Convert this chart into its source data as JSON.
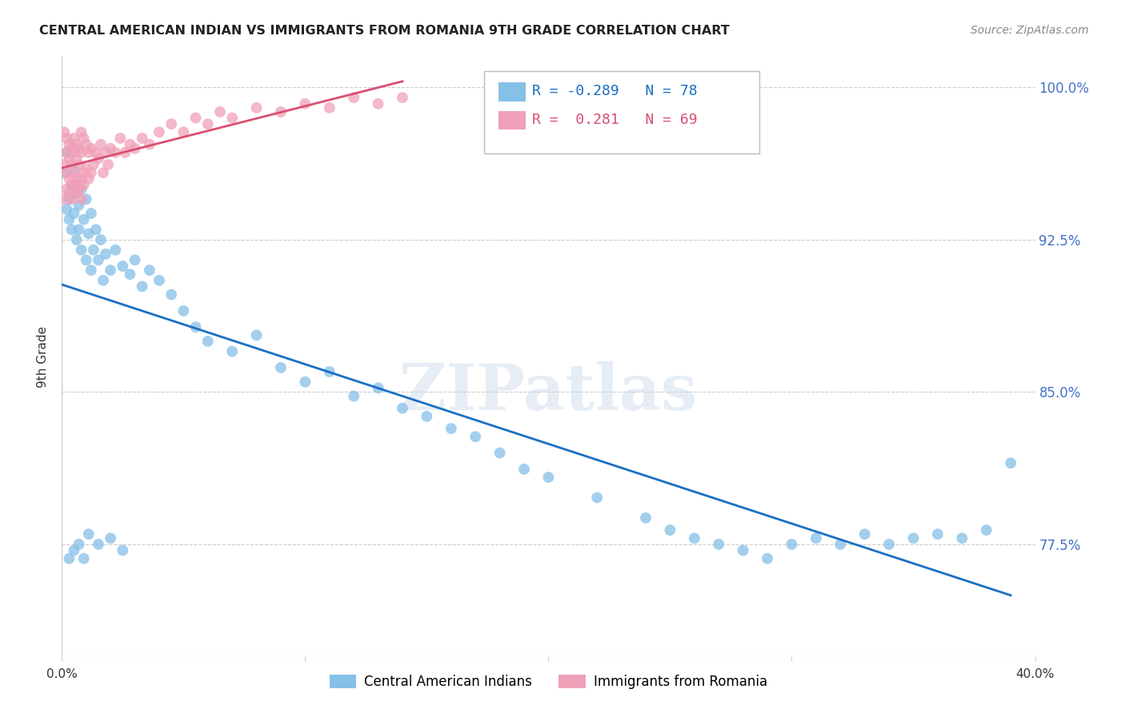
{
  "title": "CENTRAL AMERICAN INDIAN VS IMMIGRANTS FROM ROMANIA 9TH GRADE CORRELATION CHART",
  "source": "Source: ZipAtlas.com",
  "ylabel": "9th Grade",
  "xlim": [
    0.0,
    0.4
  ],
  "ylim": [
    0.72,
    1.015
  ],
  "blue_R": -0.289,
  "blue_N": 78,
  "pink_R": 0.281,
  "pink_N": 69,
  "legend_label_blue": "Central American Indians",
  "legend_label_pink": "Immigrants from Romania",
  "blue_color": "#85c0e8",
  "pink_color": "#f0a0b8",
  "blue_line_color": "#1a6fc4",
  "pink_line_color": "#d94f70",
  "watermark": "ZIPatlas",
  "ytick_positions": [
    0.775,
    0.85,
    0.925,
    1.0
  ],
  "ytick_labels": [
    "77.5%",
    "85.0%",
    "92.5%",
    "100.0%"
  ],
  "blue_scatter_x": [
    0.001,
    0.002,
    0.002,
    0.003,
    0.003,
    0.004,
    0.004,
    0.005,
    0.005,
    0.006,
    0.006,
    0.007,
    0.007,
    0.008,
    0.008,
    0.009,
    0.01,
    0.01,
    0.011,
    0.012,
    0.012,
    0.013,
    0.014,
    0.015,
    0.016,
    0.017,
    0.018,
    0.02,
    0.022,
    0.025,
    0.028,
    0.03,
    0.033,
    0.036,
    0.04,
    0.045,
    0.05,
    0.055,
    0.06,
    0.07,
    0.08,
    0.09,
    0.1,
    0.11,
    0.12,
    0.13,
    0.14,
    0.15,
    0.16,
    0.17,
    0.18,
    0.19,
    0.2,
    0.22,
    0.24,
    0.25,
    0.26,
    0.27,
    0.28,
    0.29,
    0.3,
    0.31,
    0.32,
    0.33,
    0.34,
    0.35,
    0.36,
    0.37,
    0.38,
    0.39,
    0.003,
    0.005,
    0.007,
    0.009,
    0.011,
    0.015,
    0.02,
    0.025
  ],
  "blue_scatter_y": [
    0.958,
    0.968,
    0.94,
    0.935,
    0.945,
    0.952,
    0.93,
    0.96,
    0.938,
    0.948,
    0.925,
    0.942,
    0.93,
    0.95,
    0.92,
    0.935,
    0.945,
    0.915,
    0.928,
    0.938,
    0.91,
    0.92,
    0.93,
    0.915,
    0.925,
    0.905,
    0.918,
    0.91,
    0.92,
    0.912,
    0.908,
    0.915,
    0.902,
    0.91,
    0.905,
    0.898,
    0.89,
    0.882,
    0.875,
    0.87,
    0.878,
    0.862,
    0.855,
    0.86,
    0.848,
    0.852,
    0.842,
    0.838,
    0.832,
    0.828,
    0.82,
    0.812,
    0.808,
    0.798,
    0.788,
    0.782,
    0.778,
    0.775,
    0.772,
    0.768,
    0.775,
    0.778,
    0.775,
    0.78,
    0.775,
    0.778,
    0.78,
    0.778,
    0.782,
    0.815,
    0.768,
    0.772,
    0.775,
    0.768,
    0.78,
    0.775,
    0.778,
    0.772
  ],
  "pink_scatter_x": [
    0.001,
    0.001,
    0.002,
    0.002,
    0.002,
    0.003,
    0.003,
    0.003,
    0.004,
    0.004,
    0.004,
    0.005,
    0.005,
    0.005,
    0.006,
    0.006,
    0.006,
    0.007,
    0.007,
    0.007,
    0.008,
    0.008,
    0.008,
    0.009,
    0.009,
    0.01,
    0.01,
    0.011,
    0.011,
    0.012,
    0.012,
    0.013,
    0.014,
    0.015,
    0.016,
    0.017,
    0.018,
    0.019,
    0.02,
    0.022,
    0.024,
    0.026,
    0.028,
    0.03,
    0.033,
    0.036,
    0.04,
    0.045,
    0.05,
    0.055,
    0.06,
    0.065,
    0.07,
    0.08,
    0.09,
    0.1,
    0.11,
    0.12,
    0.13,
    0.14,
    0.001,
    0.002,
    0.003,
    0.004,
    0.005,
    0.006,
    0.007,
    0.008,
    0.009
  ],
  "pink_scatter_y": [
    0.978,
    0.962,
    0.975,
    0.958,
    0.968,
    0.972,
    0.955,
    0.965,
    0.97,
    0.952,
    0.962,
    0.975,
    0.958,
    0.968,
    0.972,
    0.955,
    0.965,
    0.97,
    0.952,
    0.962,
    0.978,
    0.955,
    0.968,
    0.975,
    0.958,
    0.972,
    0.96,
    0.968,
    0.955,
    0.97,
    0.958,
    0.962,
    0.968,
    0.965,
    0.972,
    0.958,
    0.968,
    0.962,
    0.97,
    0.968,
    0.975,
    0.968,
    0.972,
    0.97,
    0.975,
    0.972,
    0.978,
    0.982,
    0.978,
    0.985,
    0.982,
    0.988,
    0.985,
    0.99,
    0.988,
    0.992,
    0.99,
    0.995,
    0.992,
    0.995,
    0.945,
    0.95,
    0.948,
    0.945,
    0.952,
    0.948,
    0.95,
    0.945,
    0.952
  ]
}
